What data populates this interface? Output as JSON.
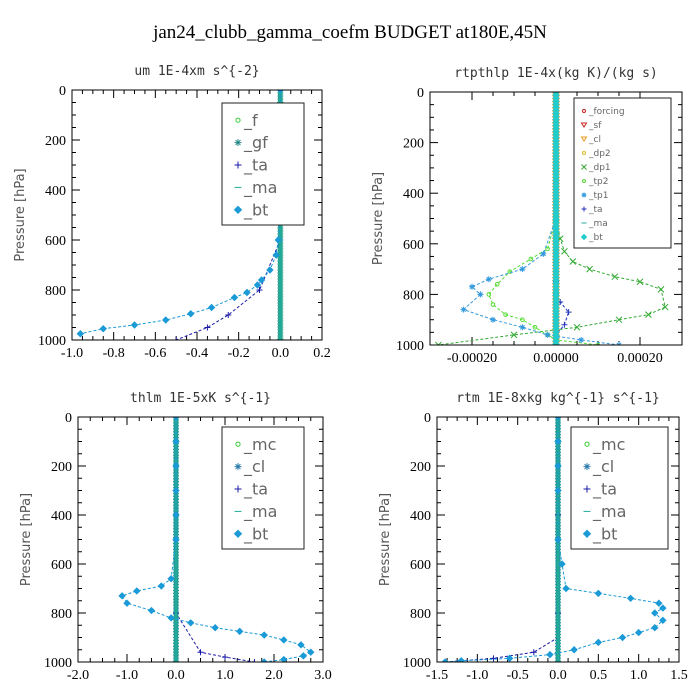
{
  "figure_title": "jan24_clubb_gamma_coefm  BUDGET at180E,45N",
  "chart_data": [
    {
      "type": "line",
      "title": "um  1E-4xm s^{-2}",
      "ylabel": "Pressure [hPa]",
      "xlim": [
        -1.0,
        0.2
      ],
      "ylim": [
        1000,
        0
      ],
      "xticks": [
        "-1.0",
        "-0.8",
        "-0.6",
        "-0.4",
        "-0.2",
        "0.0",
        "0.2"
      ],
      "xtick_values": [
        -1.0,
        -0.8,
        -0.6,
        -0.4,
        -0.2,
        0.0,
        0.2
      ],
      "yticks": [
        "0",
        "200",
        "400",
        "600",
        "800",
        "1000"
      ],
      "ytick_values": [
        0,
        200,
        400,
        600,
        800,
        1000
      ],
      "legend_position": "top-right",
      "legend_font": 16,
      "series": [
        {
          "name": "_f",
          "color": "#33cc33",
          "marker": "circle",
          "x": [
            0,
            0,
            0,
            0,
            0,
            0,
            0,
            0,
            0,
            0,
            0,
            0
          ],
          "y": [
            0,
            100,
            200,
            300,
            400,
            500,
            600,
            700,
            800,
            900,
            950,
            1000
          ]
        },
        {
          "name": "_gf",
          "color": "#2a8a8a",
          "marker": "star",
          "x": [
            0,
            0,
            0,
            0,
            0,
            0,
            0,
            0,
            0,
            0,
            0,
            0
          ],
          "y": [
            0,
            100,
            200,
            300,
            400,
            500,
            600,
            700,
            800,
            900,
            950,
            1000
          ]
        },
        {
          "name": "_ta",
          "color": "#1a1aaa",
          "marker": "plus",
          "x": [
            0,
            0,
            0,
            0,
            -0.1,
            -0.25,
            -0.35,
            -0.5
          ],
          "y": [
            0,
            200,
            400,
            600,
            800,
            900,
            950,
            1000
          ]
        },
        {
          "name": "_ma",
          "color": "#22aa99",
          "marker": "dash",
          "x": [
            0,
            0,
            0,
            0,
            0,
            0,
            0,
            0
          ],
          "y": [
            0,
            200,
            400,
            600,
            800,
            900,
            950,
            1000
          ]
        },
        {
          "name": "_bt",
          "color": "#1a9ad6",
          "marker": "diamond",
          "x": [
            0,
            0,
            0,
            0,
            0,
            0,
            -0.01,
            -0.02,
            -0.05,
            -0.09,
            -0.11,
            -0.16,
            -0.22,
            -0.33,
            -0.43,
            -0.55,
            -0.7,
            -0.85,
            -0.96
          ],
          "y": [
            0,
            100,
            200,
            300,
            400,
            500,
            600,
            660,
            720,
            760,
            780,
            810,
            830,
            870,
            895,
            920,
            940,
            955,
            975
          ]
        }
      ]
    },
    {
      "type": "line",
      "title": "rtpthlp  1E-4x(kg K)/(kg s)",
      "ylabel": "Pressure [hPa]",
      "xlim": [
        -0.0003,
        0.0003
      ],
      "ylim": [
        1000,
        0
      ],
      "xticks": [
        "-0.00020",
        "0.00000",
        "0.00020"
      ],
      "xtick_values": [
        -0.0002,
        0.0,
        0.0002
      ],
      "yticks": [
        "0",
        "200",
        "400",
        "600",
        "800",
        "1000"
      ],
      "ytick_values": [
        0,
        200,
        400,
        600,
        800,
        1000
      ],
      "legend_position": "top-right",
      "legend_font": 9,
      "series": [
        {
          "name": "_forcing",
          "color": "#cc2222",
          "marker": "circle",
          "x": [
            0,
            0,
            0,
            0,
            0,
            0,
            0,
            0,
            0,
            0,
            0
          ],
          "y": [
            0,
            100,
            200,
            300,
            400,
            500,
            600,
            700,
            800,
            900,
            1000
          ]
        },
        {
          "name": "_sf",
          "color": "#cc2222",
          "marker": "triangle",
          "x": [
            0,
            0,
            0,
            0,
            0,
            0,
            0,
            0,
            0,
            0,
            0
          ],
          "y": [
            0,
            100,
            200,
            300,
            400,
            500,
            600,
            700,
            800,
            900,
            1000
          ]
        },
        {
          "name": "_cl",
          "color": "#ee9922",
          "marker": "triangle",
          "x": [
            0,
            0,
            0,
            0,
            0,
            0
          ],
          "y": [
            0,
            200,
            400,
            600,
            800,
            1000
          ]
        },
        {
          "name": "_dp2",
          "color": "#ddbb22",
          "marker": "circle",
          "x": [
            0,
            0,
            0,
            0,
            0,
            0
          ],
          "y": [
            0,
            200,
            400,
            600,
            800,
            1000
          ]
        },
        {
          "name": "_dp1",
          "color": "#33aa33",
          "marker": "cross",
          "x": [
            0,
            0,
            0,
            1e-05,
            2e-05,
            4e-05,
            8e-05,
            0.00014,
            0.0002,
            0.00025,
            0.00026,
            0.00022,
            0.00015,
            5e-05,
            -0.0001,
            -0.00028
          ],
          "y": [
            0,
            300,
            500,
            580,
            630,
            670,
            700,
            730,
            750,
            780,
            850,
            880,
            900,
            930,
            960,
            1000
          ]
        },
        {
          "name": "_tp2",
          "color": "#55dd33",
          "marker": "circle",
          "x": [
            0,
            0,
            0,
            -2e-05,
            -6e-05,
            -0.00011,
            -0.00014,
            -0.00016,
            -0.00015,
            -0.00012,
            -8e-05,
            -5e-05,
            -2e-05,
            0.0,
            0.0001
          ],
          "y": [
            0,
            300,
            500,
            620,
            660,
            710,
            760,
            800,
            840,
            880,
            900,
            930,
            960,
            980,
            1000
          ]
        },
        {
          "name": "_tp1",
          "color": "#3399dd",
          "marker": "star",
          "x": [
            0,
            0,
            0,
            -3e-05,
            -8e-05,
            -0.00016,
            -0.0002,
            -0.00018,
            -0.00022,
            -0.00015,
            -8e-05,
            -2e-05,
            6e-05,
            0.00015
          ],
          "y": [
            0,
            300,
            500,
            640,
            700,
            740,
            770,
            800,
            860,
            900,
            930,
            960,
            980,
            1000
          ]
        },
        {
          "name": "_ta",
          "color": "#2233bb",
          "marker": "plus",
          "x": [
            0,
            0,
            0,
            0,
            0,
            1e-05,
            3e-05,
            2e-05,
            0,
            0
          ],
          "y": [
            0,
            300,
            600,
            750,
            800,
            830,
            870,
            920,
            960,
            1000
          ]
        },
        {
          "name": "_ma",
          "color": "#22aa99",
          "marker": "dash",
          "x": [
            0,
            0,
            0,
            0,
            0,
            0
          ],
          "y": [
            0,
            200,
            400,
            600,
            800,
            1000
          ]
        },
        {
          "name": "_bt",
          "color": "#22cccc",
          "marker": "diamond",
          "x": [
            0,
            0,
            0,
            0,
            0,
            0,
            0,
            0,
            0,
            0,
            0
          ],
          "y": [
            0,
            100,
            200,
            300,
            400,
            500,
            600,
            700,
            800,
            900,
            1000
          ]
        }
      ]
    },
    {
      "type": "line",
      "title": "thlm  1E-5xK s^{-1}",
      "ylabel": "Pressure [hPa]",
      "xlim": [
        -2.0,
        3.0
      ],
      "ylim": [
        1000,
        0
      ],
      "xticks": [
        "-2.0",
        "-1.0",
        "0.0",
        "1.0",
        "2.0",
        "3.0"
      ],
      "xtick_values": [
        -2.0,
        -1.0,
        0.0,
        1.0,
        2.0,
        3.0
      ],
      "yticks": [
        "0",
        "200",
        "400",
        "600",
        "800",
        "1000"
      ],
      "ytick_values": [
        0,
        200,
        400,
        600,
        800,
        1000
      ],
      "legend_position": "top-right",
      "legend_font": 16,
      "series": [
        {
          "name": "_mc",
          "color": "#33cc33",
          "marker": "circle",
          "x": [
            0,
            0,
            0,
            0,
            0,
            0,
            0,
            0,
            0,
            0,
            0
          ],
          "y": [
            0,
            100,
            200,
            300,
            400,
            500,
            600,
            700,
            800,
            900,
            1000
          ]
        },
        {
          "name": "_cl",
          "color": "#2a7aaa",
          "marker": "star",
          "x": [
            0,
            0,
            0,
            0,
            0,
            0,
            0,
            0,
            0,
            0,
            0
          ],
          "y": [
            0,
            100,
            200,
            300,
            400,
            500,
            600,
            700,
            800,
            900,
            1000
          ]
        },
        {
          "name": "_ta",
          "color": "#1a1aaa",
          "marker": "plus",
          "x": [
            0,
            0,
            0,
            0,
            0,
            0.5,
            1.0,
            1.6
          ],
          "y": [
            0,
            200,
            400,
            600,
            800,
            960,
            980,
            1000
          ]
        },
        {
          "name": "_ma",
          "color": "#22aa99",
          "marker": "dash",
          "x": [
            0,
            0,
            0,
            0,
            0,
            0,
            0
          ],
          "y": [
            0,
            200,
            400,
            600,
            800,
            900,
            1000
          ]
        },
        {
          "name": "_bt",
          "color": "#1a9ad6",
          "marker": "diamond",
          "x": [
            0,
            0,
            0,
            0,
            0,
            0,
            -0.1,
            -0.3,
            -0.8,
            -1.1,
            -1.0,
            -0.5,
            -0.1,
            0.3,
            0.8,
            1.3,
            1.8,
            2.2,
            2.55,
            2.75,
            2.6,
            2.2,
            1.8
          ],
          "y": [
            0,
            100,
            200,
            300,
            400,
            500,
            660,
            690,
            710,
            730,
            760,
            790,
            820,
            840,
            860,
            875,
            890,
            910,
            930,
            960,
            975,
            990,
            1000
          ]
        }
      ]
    },
    {
      "type": "line",
      "title": "rtm  1E-8xkg kg^{-1} s^{-1}",
      "ylabel": "Pressure [hPa]",
      "xlim": [
        -1.5,
        1.5
      ],
      "ylim": [
        1000,
        0
      ],
      "xticks": [
        "-1.5",
        "-1.0",
        "-0.5",
        "0.0",
        "0.5",
        "1.0",
        "1.5"
      ],
      "xtick_values": [
        -1.5,
        -1.0,
        -0.5,
        0.0,
        0.5,
        1.0,
        1.5
      ],
      "yticks": [
        "0",
        "200",
        "400",
        "600",
        "800",
        "1000"
      ],
      "ytick_values": [
        0,
        200,
        400,
        600,
        800,
        1000
      ],
      "legend_position": "top-right",
      "legend_font": 16,
      "series": [
        {
          "name": "_mc",
          "color": "#33cc33",
          "marker": "circle",
          "x": [
            0,
            0,
            0,
            0,
            0,
            0,
            0,
            0,
            0,
            0,
            0
          ],
          "y": [
            0,
            100,
            200,
            300,
            400,
            500,
            600,
            700,
            800,
            900,
            1000
          ]
        },
        {
          "name": "_cl",
          "color": "#2a7aaa",
          "marker": "star",
          "x": [
            0,
            0,
            0,
            0,
            0,
            0,
            0,
            0,
            0,
            0,
            0
          ],
          "y": [
            0,
            100,
            200,
            300,
            400,
            500,
            600,
            700,
            800,
            900,
            1000
          ]
        },
        {
          "name": "_ta",
          "color": "#1a1aaa",
          "marker": "plus",
          "x": [
            0,
            0,
            0,
            0,
            0,
            0,
            -0.3,
            -0.8,
            -1.4
          ],
          "y": [
            0,
            200,
            400,
            600,
            800,
            900,
            960,
            985,
            1000
          ]
        },
        {
          "name": "_ma",
          "color": "#22aa99",
          "marker": "dash",
          "x": [
            0,
            0,
            0,
            0,
            0,
            0,
            0
          ],
          "y": [
            0,
            200,
            400,
            600,
            800,
            900,
            1000
          ]
        },
        {
          "name": "_bt",
          "color": "#1a9ad6",
          "marker": "diamond",
          "x": [
            0,
            0,
            0,
            0,
            0,
            0.05,
            0.1,
            0.5,
            0.9,
            1.25,
            1.3,
            1.2,
            1.3,
            1.2,
            1.0,
            0.8,
            0.5,
            0.2,
            -0.1,
            -0.6,
            -1.2,
            -1.4
          ],
          "y": [
            0,
            100,
            200,
            300,
            500,
            600,
            700,
            720,
            740,
            760,
            780,
            800,
            830,
            860,
            880,
            900,
            920,
            950,
            970,
            985,
            995,
            1000
          ]
        }
      ]
    }
  ]
}
